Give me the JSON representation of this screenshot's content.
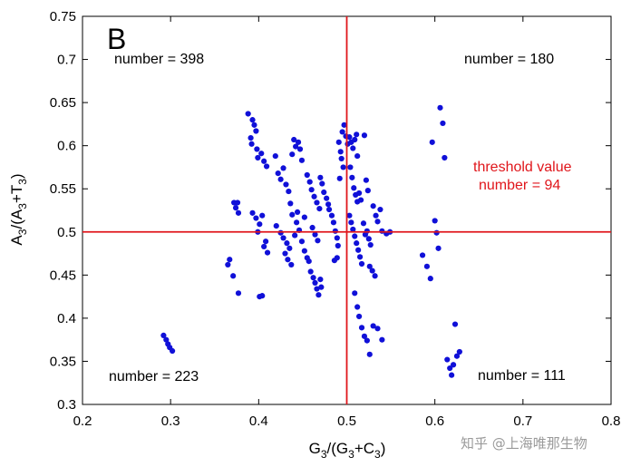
{
  "chart_data": {
    "type": "scatter",
    "panel_label": "B",
    "xlabel": {
      "main": "G",
      "sub1": "3",
      "mid": "/(G",
      "sub2": "3",
      "mid2": "+C",
      "sub3": "3",
      "end": ")"
    },
    "ylabel": {
      "main": "A",
      "sub1": "3",
      "mid": "/(A",
      "sub2": "3",
      "mid2": "+T",
      "sub3": "3",
      "end": ")"
    },
    "xlim": [
      0.2,
      0.8
    ],
    "ylim": [
      0.3,
      0.75
    ],
    "xticks": [
      0.2,
      0.3,
      0.4,
      0.5,
      0.6,
      0.7,
      0.8
    ],
    "xtick_labels": [
      "0.2",
      "0.3",
      "0.4",
      "0.5",
      "0.6",
      "0.7",
      "0.8"
    ],
    "yticks": [
      0.3,
      0.35,
      0.4,
      0.45,
      0.5,
      0.55,
      0.6,
      0.65,
      0.7,
      0.75
    ],
    "ytick_labels": [
      "0.3",
      "0.35",
      "0.4",
      "0.45",
      "0.5",
      "0.55",
      "0.6",
      "0.65",
      "0.7",
      "0.75"
    ],
    "threshold": {
      "x": 0.5,
      "y": 0.5,
      "color": "#e0161b"
    },
    "point_color": "#1010d8",
    "annotations": {
      "top_left": "number = 398",
      "top_right": "number = 180",
      "bottom_left": "number = 223",
      "bottom_right": "number = 111",
      "threshold_title": "threshold value",
      "threshold_count": "number = 94"
    },
    "watermark": "知乎 @上海唯那生物",
    "points": [
      [
        0.292,
        0.38
      ],
      [
        0.295,
        0.375
      ],
      [
        0.297,
        0.37
      ],
      [
        0.299,
        0.366
      ],
      [
        0.302,
        0.362
      ],
      [
        0.365,
        0.462
      ],
      [
        0.367,
        0.468
      ],
      [
        0.371,
        0.449
      ],
      [
        0.377,
        0.429
      ],
      [
        0.372,
        0.534
      ],
      [
        0.376,
        0.534
      ],
      [
        0.374,
        0.528
      ],
      [
        0.377,
        0.522
      ],
      [
        0.388,
        0.637
      ],
      [
        0.393,
        0.63
      ],
      [
        0.395,
        0.624
      ],
      [
        0.397,
        0.617
      ],
      [
        0.391,
        0.609
      ],
      [
        0.392,
        0.602
      ],
      [
        0.398,
        0.596
      ],
      [
        0.403,
        0.591
      ],
      [
        0.399,
        0.586
      ],
      [
        0.406,
        0.582
      ],
      [
        0.409,
        0.576
      ],
      [
        0.393,
        0.522
      ],
      [
        0.397,
        0.516
      ],
      [
        0.401,
        0.509
      ],
      [
        0.404,
        0.519
      ],
      [
        0.399,
        0.5
      ],
      [
        0.408,
        0.489
      ],
      [
        0.406,
        0.483
      ],
      [
        0.41,
        0.476
      ],
      [
        0.404,
        0.426
      ],
      [
        0.401,
        0.425
      ],
      [
        0.419,
        0.588
      ],
      [
        0.422,
        0.568
      ],
      [
        0.425,
        0.561
      ],
      [
        0.428,
        0.574
      ],
      [
        0.431,
        0.555
      ],
      [
        0.434,
        0.547
      ],
      [
        0.436,
        0.533
      ],
      [
        0.438,
        0.59
      ],
      [
        0.44,
        0.607
      ],
      [
        0.442,
        0.599
      ],
      [
        0.445,
        0.604
      ],
      [
        0.447,
        0.596
      ],
      [
        0.449,
        0.583
      ],
      [
        0.42,
        0.507
      ],
      [
        0.425,
        0.499
      ],
      [
        0.428,
        0.493
      ],
      [
        0.432,
        0.487
      ],
      [
        0.435,
        0.481
      ],
      [
        0.43,
        0.475
      ],
      [
        0.433,
        0.468
      ],
      [
        0.437,
        0.462
      ],
      [
        0.441,
        0.496
      ],
      [
        0.443,
        0.511
      ],
      [
        0.446,
        0.502
      ],
      [
        0.449,
        0.489
      ],
      [
        0.452,
        0.517
      ],
      [
        0.438,
        0.52
      ],
      [
        0.444,
        0.523
      ],
      [
        0.455,
        0.566
      ],
      [
        0.458,
        0.558
      ],
      [
        0.46,
        0.549
      ],
      [
        0.463,
        0.541
      ],
      [
        0.466,
        0.534
      ],
      [
        0.469,
        0.527
      ],
      [
        0.461,
        0.505
      ],
      [
        0.464,
        0.497
      ],
      [
        0.467,
        0.49
      ],
      [
        0.47,
        0.563
      ],
      [
        0.472,
        0.556
      ],
      [
        0.474,
        0.546
      ],
      [
        0.477,
        0.539
      ],
      [
        0.479,
        0.532
      ],
      [
        0.48,
        0.526
      ],
      [
        0.452,
        0.478
      ],
      [
        0.455,
        0.47
      ],
      [
        0.457,
        0.466
      ],
      [
        0.459,
        0.454
      ],
      [
        0.462,
        0.447
      ],
      [
        0.464,
        0.441
      ],
      [
        0.466,
        0.434
      ],
      [
        0.468,
        0.427
      ],
      [
        0.47,
        0.445
      ],
      [
        0.471,
        0.436
      ],
      [
        0.483,
        0.519
      ],
      [
        0.485,
        0.511
      ],
      [
        0.487,
        0.501
      ],
      [
        0.489,
        0.493
      ],
      [
        0.49,
        0.484
      ],
      [
        0.491,
        0.604
      ],
      [
        0.493,
        0.593
      ],
      [
        0.494,
        0.585
      ],
      [
        0.495,
        0.616
      ],
      [
        0.497,
        0.624
      ],
      [
        0.492,
        0.562
      ],
      [
        0.496,
        0.575
      ],
      [
        0.499,
        0.611
      ],
      [
        0.486,
        0.467
      ],
      [
        0.489,
        0.47
      ],
      [
        0.501,
        0.602
      ],
      [
        0.503,
        0.61
      ],
      [
        0.505,
        0.604
      ],
      [
        0.507,
        0.597
      ],
      [
        0.509,
        0.607
      ],
      [
        0.511,
        0.613
      ],
      [
        0.512,
        0.588
      ],
      [
        0.504,
        0.575
      ],
      [
        0.506,
        0.563
      ],
      [
        0.508,
        0.551
      ],
      [
        0.51,
        0.543
      ],
      [
        0.512,
        0.535
      ],
      [
        0.514,
        0.545
      ],
      [
        0.516,
        0.537
      ],
      [
        0.503,
        0.519
      ],
      [
        0.505,
        0.511
      ],
      [
        0.507,
        0.503
      ],
      [
        0.509,
        0.495
      ],
      [
        0.511,
        0.487
      ],
      [
        0.513,
        0.479
      ],
      [
        0.515,
        0.471
      ],
      [
        0.517,
        0.463
      ],
      [
        0.519,
        0.51
      ],
      [
        0.521,
        0.497
      ],
      [
        0.523,
        0.501
      ],
      [
        0.525,
        0.492
      ],
      [
        0.527,
        0.485
      ],
      [
        0.53,
        0.53
      ],
      [
        0.533,
        0.519
      ],
      [
        0.535,
        0.512
      ],
      [
        0.538,
        0.526
      ],
      [
        0.54,
        0.501
      ],
      [
        0.545,
        0.498
      ],
      [
        0.549,
        0.5
      ],
      [
        0.526,
        0.46
      ],
      [
        0.529,
        0.455
      ],
      [
        0.532,
        0.449
      ],
      [
        0.509,
        0.429
      ],
      [
        0.512,
        0.413
      ],
      [
        0.514,
        0.402
      ],
      [
        0.517,
        0.389
      ],
      [
        0.52,
        0.379
      ],
      [
        0.523,
        0.374
      ],
      [
        0.526,
        0.358
      ],
      [
        0.53,
        0.391
      ],
      [
        0.535,
        0.388
      ],
      [
        0.54,
        0.375
      ],
      [
        0.52,
        0.612
      ],
      [
        0.522,
        0.56
      ],
      [
        0.524,
        0.548
      ],
      [
        0.586,
        0.473
      ],
      [
        0.591,
        0.46
      ],
      [
        0.595,
        0.446
      ],
      [
        0.597,
        0.604
      ],
      [
        0.6,
        0.513
      ],
      [
        0.602,
        0.499
      ],
      [
        0.604,
        0.481
      ],
      [
        0.606,
        0.644
      ],
      [
        0.609,
        0.626
      ],
      [
        0.611,
        0.586
      ],
      [
        0.614,
        0.352
      ],
      [
        0.617,
        0.342
      ],
      [
        0.619,
        0.334
      ],
      [
        0.621,
        0.346
      ],
      [
        0.623,
        0.393
      ],
      [
        0.625,
        0.356
      ],
      [
        0.628,
        0.361
      ]
    ]
  }
}
